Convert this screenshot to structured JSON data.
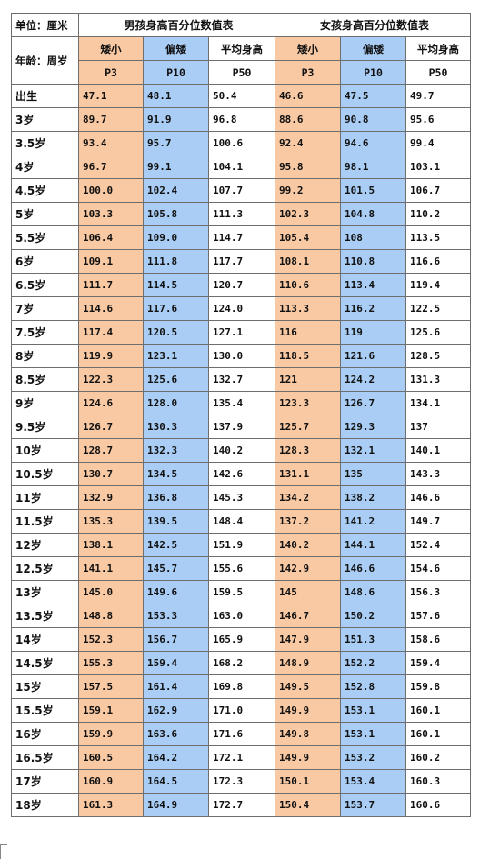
{
  "header": {
    "unit_label": "单位：厘米",
    "age_label": "年龄：周岁",
    "boys_title": "男孩身高百分位数值表",
    "girls_title": "女孩身高百分位数值表",
    "col_short": "矮小",
    "col_below": "偏矮",
    "col_avg": "平均身高",
    "p3": "P3",
    "p10": "P10",
    "p50": "P50"
  },
  "colors": {
    "p3": "#f9c9a3",
    "p10": "#a9cdf4",
    "p50": "#ffffff"
  },
  "rows": [
    {
      "age": "出生",
      "b3": "47.1",
      "b10": "48.1",
      "b50": "50.4",
      "g3": "46.6",
      "g10": "47.5",
      "g50": "49.7"
    },
    {
      "age": "3岁",
      "b3": "89.7",
      "b10": "91.9",
      "b50": "96.8",
      "g3": "88.6",
      "g10": "90.8",
      "g50": "95.6"
    },
    {
      "age": "3.5岁",
      "b3": "93.4",
      "b10": "95.7",
      "b50": "100.6",
      "g3": "92.4",
      "g10": "94.6",
      "g50": "99.4"
    },
    {
      "age": "4岁",
      "b3": "96.7",
      "b10": "99.1",
      "b50": "104.1",
      "g3": "95.8",
      "g10": "98.1",
      "g50": "103.1"
    },
    {
      "age": "4.5岁",
      "b3": "100.0",
      "b10": "102.4",
      "b50": "107.7",
      "g3": "99.2",
      "g10": "101.5",
      "g50": "106.7"
    },
    {
      "age": "5岁",
      "b3": "103.3",
      "b10": "105.8",
      "b50": "111.3",
      "g3": "102.3",
      "g10": "104.8",
      "g50": "110.2"
    },
    {
      "age": "5.5岁",
      "b3": "106.4",
      "b10": "109.0",
      "b50": "114.7",
      "g3": "105.4",
      "g10": "108",
      "g50": "113.5"
    },
    {
      "age": "6岁",
      "b3": "109.1",
      "b10": "111.8",
      "b50": "117.7",
      "g3": "108.1",
      "g10": "110.8",
      "g50": "116.6"
    },
    {
      "age": "6.5岁",
      "b3": "111.7",
      "b10": "114.5",
      "b50": "120.7",
      "g3": "110.6",
      "g10": "113.4",
      "g50": "119.4"
    },
    {
      "age": "7岁",
      "b3": "114.6",
      "b10": "117.6",
      "b50": "124.0",
      "g3": "113.3",
      "g10": "116.2",
      "g50": "122.5"
    },
    {
      "age": "7.5岁",
      "b3": "117.4",
      "b10": "120.5",
      "b50": "127.1",
      "g3": "116",
      "g10": "119",
      "g50": "125.6"
    },
    {
      "age": "8岁",
      "b3": "119.9",
      "b10": "123.1",
      "b50": "130.0",
      "g3": "118.5",
      "g10": "121.6",
      "g50": "128.5"
    },
    {
      "age": "8.5岁",
      "b3": "122.3",
      "b10": "125.6",
      "b50": "132.7",
      "g3": "121",
      "g10": "124.2",
      "g50": "131.3"
    },
    {
      "age": "9岁",
      "b3": "124.6",
      "b10": "128.0",
      "b50": "135.4",
      "g3": "123.3",
      "g10": "126.7",
      "g50": "134.1"
    },
    {
      "age": "9.5岁",
      "b3": "126.7",
      "b10": "130.3",
      "b50": "137.9",
      "g3": "125.7",
      "g10": "129.3",
      "g50": "137"
    },
    {
      "age": "10岁",
      "b3": "128.7",
      "b10": "132.3",
      "b50": "140.2",
      "g3": "128.3",
      "g10": "132.1",
      "g50": "140.1"
    },
    {
      "age": "10.5岁",
      "b3": "130.7",
      "b10": "134.5",
      "b50": "142.6",
      "g3": "131.1",
      "g10": "135",
      "g50": "143.3"
    },
    {
      "age": "11岁",
      "b3": "132.9",
      "b10": "136.8",
      "b50": "145.3",
      "g3": "134.2",
      "g10": "138.2",
      "g50": "146.6"
    },
    {
      "age": "11.5岁",
      "b3": "135.3",
      "b10": "139.5",
      "b50": "148.4",
      "g3": "137.2",
      "g10": "141.2",
      "g50": "149.7"
    },
    {
      "age": "12岁",
      "b3": "138.1",
      "b10": "142.5",
      "b50": "151.9",
      "g3": "140.2",
      "g10": "144.1",
      "g50": "152.4"
    },
    {
      "age": "12.5岁",
      "b3": "141.1",
      "b10": "145.7",
      "b50": "155.6",
      "g3": "142.9",
      "g10": "146.6",
      "g50": "154.6"
    },
    {
      "age": "13岁",
      "b3": "145.0",
      "b10": "149.6",
      "b50": "159.5",
      "g3": "145",
      "g10": "148.6",
      "g50": "156.3"
    },
    {
      "age": "13.5岁",
      "b3": "148.8",
      "b10": "153.3",
      "b50": "163.0",
      "g3": "146.7",
      "g10": "150.2",
      "g50": "157.6"
    },
    {
      "age": "14岁",
      "b3": "152.3",
      "b10": "156.7",
      "b50": "165.9",
      "g3": "147.9",
      "g10": "151.3",
      "g50": "158.6"
    },
    {
      "age": "14.5岁",
      "b3": "155.3",
      "b10": "159.4",
      "b50": "168.2",
      "g3": "148.9",
      "g10": "152.2",
      "g50": "159.4"
    },
    {
      "age": "15岁",
      "b3": "157.5",
      "b10": "161.4",
      "b50": "169.8",
      "g3": "149.5",
      "g10": "152.8",
      "g50": "159.8"
    },
    {
      "age": "15.5岁",
      "b3": "159.1",
      "b10": "162.9",
      "b50": "171.0",
      "g3": "149.9",
      "g10": "153.1",
      "g50": "160.1"
    },
    {
      "age": "16岁",
      "b3": "159.9",
      "b10": "163.6",
      "b50": "171.6",
      "g3": "149.8",
      "g10": "153.1",
      "g50": "160.1"
    },
    {
      "age": "16.5岁",
      "b3": "160.5",
      "b10": "164.2",
      "b50": "172.1",
      "g3": "149.9",
      "g10": "153.2",
      "g50": "160.2"
    },
    {
      "age": "17岁",
      "b3": "160.9",
      "b10": "164.5",
      "b50": "172.3",
      "g3": "150.1",
      "g10": "153.4",
      "g50": "160.3"
    },
    {
      "age": "18岁",
      "b3": "161.3",
      "b10": "164.9",
      "b50": "172.7",
      "g3": "150.4",
      "g10": "153.7",
      "g50": "160.6"
    }
  ]
}
